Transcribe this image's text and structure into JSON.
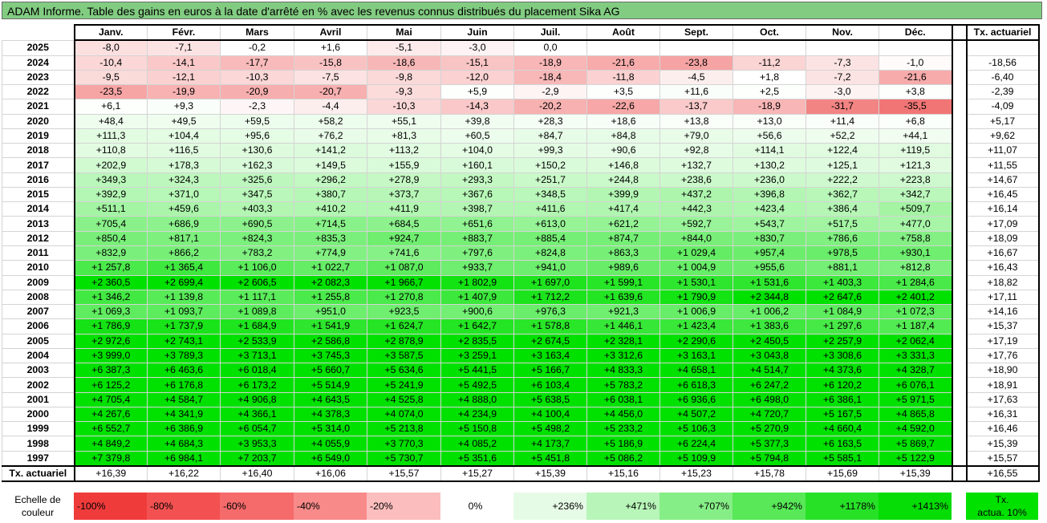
{
  "title": "ADAM Informe. Table des gains en euros à la date d'arrêté en % avec les revenus connus distribués du placement Sika AG",
  "months": [
    "Janv.",
    "Févr.",
    "Mars",
    "Avril",
    "Mai",
    "Juin",
    "Juil.",
    "Août",
    "Sept.",
    "Oct.",
    "Nov.",
    "Déc."
  ],
  "actuarial_header": "Tx. actuariel",
  "rows": [
    {
      "year": "2025",
      "values": [
        "-8,0",
        "-7,1",
        "-0,2",
        "+1,6",
        "-5,1",
        "-3,0",
        "0,0",
        "",
        "",
        "",
        "",
        ""
      ],
      "rate": ""
    },
    {
      "year": "2024",
      "values": [
        "-10,4",
        "-14,1",
        "-17,7",
        "-15,8",
        "-18,6",
        "-15,1",
        "-18,9",
        "-21,6",
        "-23,8",
        "-11,2",
        "-7,3",
        "-1,0"
      ],
      "rate": "-18,56"
    },
    {
      "year": "2023",
      "values": [
        "-9,5",
        "-12,1",
        "-10,3",
        "-7,5",
        "-9,8",
        "-12,0",
        "-18,4",
        "-11,8",
        "-4,5",
        "+1,8",
        "-7,2",
        "-21,6"
      ],
      "rate": "-6,40"
    },
    {
      "year": "2022",
      "values": [
        "-23,5",
        "-19,9",
        "-20,9",
        "-20,7",
        "-9,3",
        "+5,9",
        "-2,9",
        "+3,5",
        "+11,6",
        "+2,5",
        "-3,0",
        "+3,8"
      ],
      "rate": "-2,39"
    },
    {
      "year": "2021",
      "values": [
        "+6,1",
        "+9,3",
        "-2,3",
        "-4,4",
        "-10,3",
        "-14,3",
        "-20,2",
        "-22,6",
        "-13,7",
        "-18,9",
        "-31,7",
        "-35,5"
      ],
      "rate": "-4,09"
    },
    {
      "year": "2020",
      "values": [
        "+48,4",
        "+49,5",
        "+59,5",
        "+58,2",
        "+55,1",
        "+39,8",
        "+28,3",
        "+18,6",
        "+13,8",
        "+13,0",
        "+11,4",
        "+6,8"
      ],
      "rate": "+5,17"
    },
    {
      "year": "2019",
      "values": [
        "+111,3",
        "+104,4",
        "+95,6",
        "+76,2",
        "+81,3",
        "+60,5",
        "+84,7",
        "+84,8",
        "+79,0",
        "+56,6",
        "+52,2",
        "+44,1"
      ],
      "rate": "+9,62"
    },
    {
      "year": "2018",
      "values": [
        "+110,8",
        "+116,5",
        "+130,6",
        "+141,2",
        "+113,2",
        "+104,0",
        "+99,3",
        "+90,6",
        "+92,8",
        "+114,1",
        "+122,4",
        "+119,5"
      ],
      "rate": "+11,07"
    },
    {
      "year": "2017",
      "values": [
        "+202,9",
        "+178,3",
        "+162,3",
        "+149,5",
        "+155,9",
        "+160,1",
        "+150,2",
        "+146,8",
        "+132,7",
        "+130,2",
        "+125,1",
        "+121,3"
      ],
      "rate": "+11,55"
    },
    {
      "year": "2016",
      "values": [
        "+349,3",
        "+324,3",
        "+325,6",
        "+296,2",
        "+278,9",
        "+293,3",
        "+251,7",
        "+244,8",
        "+238,6",
        "+236,0",
        "+222,2",
        "+223,8"
      ],
      "rate": "+14,67"
    },
    {
      "year": "2015",
      "values": [
        "+392,9",
        "+371,0",
        "+347,5",
        "+380,7",
        "+373,7",
        "+367,6",
        "+348,5",
        "+399,9",
        "+437,2",
        "+396,8",
        "+362,7",
        "+342,7"
      ],
      "rate": "+16,45"
    },
    {
      "year": "2014",
      "values": [
        "+511,1",
        "+459,6",
        "+403,3",
        "+410,2",
        "+411,9",
        "+398,7",
        "+411,6",
        "+417,4",
        "+442,3",
        "+423,4",
        "+386,4",
        "+509,7"
      ],
      "rate": "+16,14"
    },
    {
      "year": "2013",
      "values": [
        "+705,4",
        "+686,9",
        "+690,5",
        "+714,5",
        "+684,5",
        "+651,6",
        "+613,0",
        "+621,2",
        "+592,7",
        "+543,7",
        "+517,5",
        "+477,0"
      ],
      "rate": "+17,09"
    },
    {
      "year": "2012",
      "values": [
        "+850,4",
        "+817,1",
        "+824,3",
        "+835,3",
        "+924,7",
        "+883,7",
        "+885,4",
        "+874,7",
        "+844,0",
        "+830,7",
        "+786,6",
        "+758,8"
      ],
      "rate": "+18,09"
    },
    {
      "year": "2011",
      "values": [
        "+832,9",
        "+866,2",
        "+783,2",
        "+774,9",
        "+741,6",
        "+797,6",
        "+824,8",
        "+863,3",
        "+1 029,4",
        "+957,4",
        "+978,5",
        "+930,1"
      ],
      "rate": "+16,67"
    },
    {
      "year": "2010",
      "values": [
        "+1 257,8",
        "+1 365,4",
        "+1 106,0",
        "+1 022,7",
        "+1 087,0",
        "+933,7",
        "+941,0",
        "+989,6",
        "+1 004,9",
        "+955,6",
        "+881,1",
        "+812,8"
      ],
      "rate": "+16,43"
    },
    {
      "year": "2009",
      "values": [
        "+2 360,5",
        "+2 699,4",
        "+2 606,5",
        "+2 082,3",
        "+1 966,7",
        "+1 802,9",
        "+1 697,0",
        "+1 599,1",
        "+1 530,1",
        "+1 531,6",
        "+1 403,3",
        "+1 284,6"
      ],
      "rate": "+18,82"
    },
    {
      "year": "2008",
      "values": [
        "+1 346,2",
        "+1 139,8",
        "+1 117,1",
        "+1 255,8",
        "+1 270,8",
        "+1 407,9",
        "+1 712,2",
        "+1 639,6",
        "+1 790,9",
        "+2 344,8",
        "+2 647,6",
        "+2 401,2"
      ],
      "rate": "+17,11"
    },
    {
      "year": "2007",
      "values": [
        "+1 069,3",
        "+1 093,7",
        "+1 089,8",
        "+951,0",
        "+923,5",
        "+900,6",
        "+976,3",
        "+921,3",
        "+1 006,9",
        "+1 006,2",
        "+1 084,9",
        "+1 072,3"
      ],
      "rate": "+14,16"
    },
    {
      "year": "2006",
      "values": [
        "+1 786,9",
        "+1 737,9",
        "+1 684,9",
        "+1 541,9",
        "+1 624,7",
        "+1 642,7",
        "+1 578,8",
        "+1 446,1",
        "+1 423,4",
        "+1 383,6",
        "+1 297,6",
        "+1 187,4"
      ],
      "rate": "+15,37"
    },
    {
      "year": "2005",
      "values": [
        "+2 972,6",
        "+2 743,1",
        "+2 533,9",
        "+2 586,8",
        "+2 878,9",
        "+2 835,5",
        "+2 674,5",
        "+2 328,1",
        "+2 290,6",
        "+2 450,5",
        "+2 257,9",
        "+2 062,4"
      ],
      "rate": "+17,19"
    },
    {
      "year": "2004",
      "values": [
        "+3 999,0",
        "+3 789,3",
        "+3 713,1",
        "+3 745,3",
        "+3 587,5",
        "+3 259,1",
        "+3 163,4",
        "+3 312,6",
        "+3 163,1",
        "+3 043,8",
        "+3 308,6",
        "+3 331,3"
      ],
      "rate": "+17,76"
    },
    {
      "year": "2003",
      "values": [
        "+6 387,3",
        "+6 463,6",
        "+6 018,4",
        "+5 660,7",
        "+5 634,6",
        "+5 441,5",
        "+5 166,7",
        "+4 833,3",
        "+4 658,1",
        "+4 514,7",
        "+4 373,6",
        "+4 328,7"
      ],
      "rate": "+18,90"
    },
    {
      "year": "2002",
      "values": [
        "+6 125,2",
        "+6 176,8",
        "+6 173,2",
        "+5 514,9",
        "+5 241,9",
        "+5 492,5",
        "+6 103,4",
        "+5 783,2",
        "+6 618,3",
        "+6 247,2",
        "+6 120,2",
        "+6 076,1"
      ],
      "rate": "+18,91"
    },
    {
      "year": "2001",
      "values": [
        "+4 705,4",
        "+4 584,7",
        "+4 906,8",
        "+4 643,5",
        "+4 525,8",
        "+4 888,0",
        "+5 638,5",
        "+6 038,1",
        "+6 936,6",
        "+6 498,0",
        "+6 386,1",
        "+5 971,5"
      ],
      "rate": "+17,63"
    },
    {
      "year": "2000",
      "values": [
        "+4 267,6",
        "+4 341,9",
        "+4 366,1",
        "+4 378,3",
        "+4 074,0",
        "+4 234,9",
        "+4 100,4",
        "+4 456,0",
        "+4 507,2",
        "+4 720,7",
        "+5 167,5",
        "+4 865,8"
      ],
      "rate": "+16,31"
    },
    {
      "year": "1999",
      "values": [
        "+6 552,7",
        "+6 386,9",
        "+6 054,7",
        "+5 314,0",
        "+5 213,8",
        "+5 150,8",
        "+5 498,2",
        "+5 233,2",
        "+5 106,3",
        "+5 270,9",
        "+4 660,4",
        "+4 592,0"
      ],
      "rate": "+16,46"
    },
    {
      "year": "1998",
      "values": [
        "+4 849,2",
        "+4 684,3",
        "+3 953,3",
        "+4 055,9",
        "+3 770,3",
        "+4 085,2",
        "+4 173,7",
        "+5 186,9",
        "+6 224,4",
        "+5 377,3",
        "+6 163,5",
        "+5 869,7"
      ],
      "rate": "+15,39"
    },
    {
      "year": "1997",
      "values": [
        "+7 379,8",
        "+6 984,1",
        "+7 203,7",
        "+6 549,0",
        "+5 730,7",
        "+5 351,6",
        "+5 451,8",
        "+5 086,2",
        "+5 109,9",
        "+5 794,8",
        "+5 585,1",
        "+5 122,9"
      ],
      "rate": "+15,57"
    }
  ],
  "footer": {
    "label": "Tx. actuariel",
    "values": [
      "+16,39",
      "+16,22",
      "+16,40",
      "+16,06",
      "+15,57",
      "+15,27",
      "+15,39",
      "+15,16",
      "+15,23",
      "+15,78",
      "+15,69",
      "+15,39"
    ],
    "rate": "+16,55"
  },
  "legend": {
    "label_line1": "Echelle de",
    "label_line2": "couleur",
    "items": [
      {
        "text": "-100%",
        "color": "#f03b3b",
        "align": "left"
      },
      {
        "text": "-80%",
        "color": "#f35151",
        "align": "left"
      },
      {
        "text": "-60%",
        "color": "#f56a6a",
        "align": "left"
      },
      {
        "text": "-40%",
        "color": "#f88a8a",
        "align": "left"
      },
      {
        "text": "-20%",
        "color": "#fbbdbd",
        "align": "left"
      },
      {
        "text": "0%",
        "color": "#ffffff",
        "align": "mid"
      },
      {
        "text": "+236%",
        "color": "#e6fbe6",
        "align": "right"
      },
      {
        "text": "+471%",
        "color": "#b8f5b8",
        "align": "right"
      },
      {
        "text": "+707%",
        "color": "#86ee86",
        "align": "right"
      },
      {
        "text": "+942%",
        "color": "#58e858",
        "align": "right"
      },
      {
        "text": "+1178%",
        "color": "#27e127",
        "align": "right"
      },
      {
        "text": "+1413%",
        "color": "#06dc06",
        "align": "right"
      }
    ],
    "tx_line1": "Tx.",
    "tx_line2": "actua. 10%",
    "tx_color": "#00e100"
  }
}
